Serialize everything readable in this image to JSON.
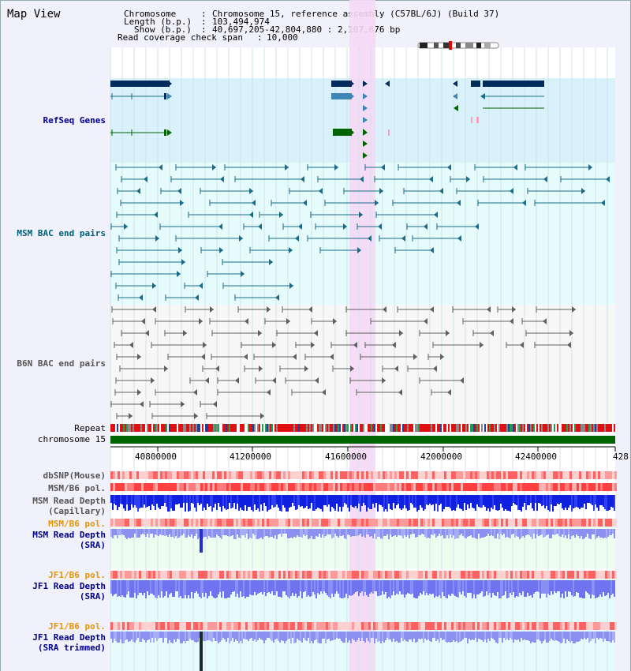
{
  "title": "Map View",
  "info": {
    "chromosome_key": "Chromosome",
    "chromosome_value": "Chromosome 15, reference assembly (C57BL/6J) (Build 37)",
    "length_key": "Length (b.p.)",
    "length_value": "103,494,974",
    "show_key": "Show (b.p.)",
    "show_value": "40,697,205-42,804,880 : 2,107,676 bp",
    "coverage_key": "Read coverage check span",
    "coverage_value": "10,000"
  },
  "tracks": {
    "refseq": "RefSeq Genes",
    "msm_bac": "MSM BAC end pairs",
    "b6n_bac": "B6N BAC end pairs",
    "repeat": "Repeat",
    "chromosome": "chromosome 15",
    "dbsnp": "dbSNP(Mouse)",
    "msm_b6_pol_1": "MSM/B6 pol.",
    "msm_depth_cap_1": "MSM Read Depth",
    "msm_depth_cap_2": "(Capillary)",
    "msm_b6_pol_2": "MSM/B6 pol.",
    "msm_depth_sra_1": "MSM Read Depth",
    "msm_depth_sra_2": "(SRA)",
    "jf1_b6_pol_1": "JF1/B6 pol.",
    "jf1_depth_sra_1": "JF1 Read Depth",
    "jf1_depth_sra_2": "(SRA)",
    "jf1_b6_pol_2": "JF1/B6 pol.",
    "jf1_depth_trim_1": "JF1 Read Depth",
    "jf1_depth_trim_2": "(SRA trimmed)"
  },
  "axis": {
    "ticks": [
      "40800000",
      "41200000",
      "41600000",
      "42000000",
      "42400000",
      "428"
    ]
  },
  "colors": {
    "refseq_dark": "#002b5c",
    "refseq_mid": "#3d86b5",
    "refseq_green": "#006400",
    "msm_line": "#1b6b8a",
    "b6n_line": "#606060",
    "chromosome_bar": "#006400",
    "highlight": "#f5d8f5",
    "label_blue": "#00008b",
    "label_teal": "#00607a",
    "label_orange": "#e69500"
  }
}
